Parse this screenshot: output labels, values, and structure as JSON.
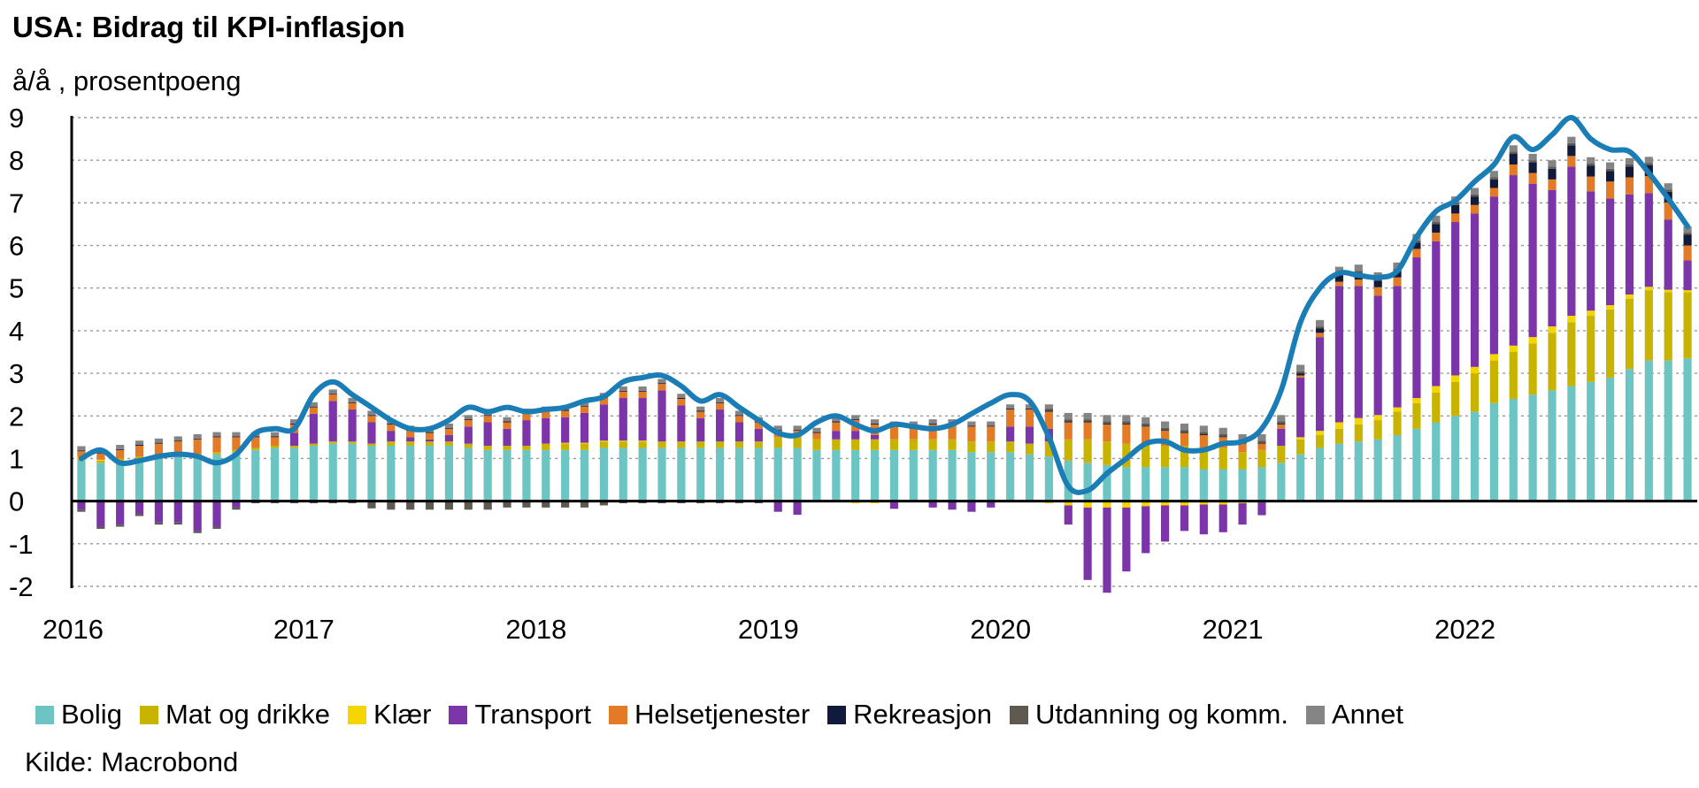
{
  "title": "USA: Bidrag til KPI-inflasjon",
  "unit_label": "å/å , prosentpoeng",
  "source": "Kilde: Macrobond",
  "chart_data": {
    "type": "bar",
    "stacked": true,
    "overlay_series_type": "line",
    "title": "USA: Bidrag til KPI-inflasjon",
    "ylabel": "å/å , prosentpoeng",
    "ylim": [
      -2,
      9
    ],
    "yticks": [
      -2,
      -1,
      0,
      1,
      2,
      3,
      4,
      5,
      6,
      7,
      8,
      9
    ],
    "xticks": [
      "2016",
      "2017",
      "2018",
      "2019",
      "2020",
      "2021",
      "2022"
    ],
    "grid": "horizontal dotted",
    "legend_position": "bottom",
    "categories": [
      "2016-01",
      "2016-02",
      "2016-03",
      "2016-04",
      "2016-05",
      "2016-06",
      "2016-07",
      "2016-08",
      "2016-09",
      "2016-10",
      "2016-11",
      "2016-12",
      "2017-01",
      "2017-02",
      "2017-03",
      "2017-04",
      "2017-05",
      "2017-06",
      "2017-07",
      "2017-08",
      "2017-09",
      "2017-10",
      "2017-11",
      "2017-12",
      "2018-01",
      "2018-02",
      "2018-03",
      "2018-04",
      "2018-05",
      "2018-06",
      "2018-07",
      "2018-08",
      "2018-09",
      "2018-10",
      "2018-11",
      "2018-12",
      "2019-01",
      "2019-02",
      "2019-03",
      "2019-04",
      "2019-05",
      "2019-06",
      "2019-07",
      "2019-08",
      "2019-09",
      "2019-10",
      "2019-11",
      "2019-12",
      "2020-01",
      "2020-02",
      "2020-03",
      "2020-04",
      "2020-05",
      "2020-06",
      "2020-07",
      "2020-08",
      "2020-09",
      "2020-10",
      "2020-11",
      "2020-12",
      "2021-01",
      "2021-02",
      "2021-03",
      "2021-04",
      "2021-05",
      "2021-06",
      "2021-07",
      "2021-08",
      "2021-09",
      "2021-10",
      "2021-11",
      "2021-12",
      "2022-01",
      "2022-02",
      "2022-03",
      "2022-04",
      "2022-05",
      "2022-06",
      "2022-07",
      "2022-08",
      "2022-09",
      "2022-10",
      "2022-11",
      "2022-12"
    ],
    "series": [
      {
        "name": "Bolig",
        "color": "#6cc5c3",
        "values": [
          0.95,
          0.9,
          0.95,
          1.0,
          1.0,
          1.05,
          1.05,
          1.1,
          1.15,
          1.2,
          1.25,
          1.25,
          1.3,
          1.35,
          1.35,
          1.3,
          1.3,
          1.3,
          1.3,
          1.3,
          1.25,
          1.2,
          1.2,
          1.2,
          1.2,
          1.2,
          1.2,
          1.25,
          1.25,
          1.25,
          1.25,
          1.25,
          1.25,
          1.25,
          1.25,
          1.25,
          1.25,
          1.25,
          1.2,
          1.2,
          1.2,
          1.2,
          1.2,
          1.2,
          1.2,
          1.2,
          1.15,
          1.15,
          1.15,
          1.1,
          1.05,
          0.95,
          0.9,
          0.85,
          0.8,
          0.8,
          0.8,
          0.8,
          0.75,
          0.75,
          0.75,
          0.8,
          0.9,
          1.1,
          1.25,
          1.35,
          1.4,
          1.45,
          1.55,
          1.7,
          1.85,
          2.0,
          2.1,
          2.3,
          2.4,
          2.5,
          2.6,
          2.7,
          2.8,
          2.9,
          3.1,
          3.3,
          3.3,
          3.35
        ]
      },
      {
        "name": "Mat og drikke",
        "color": "#c7b300",
        "values": [
          0.05,
          0.05,
          0.05,
          0.05,
          0.05,
          0.05,
          0.05,
          0.05,
          0.05,
          0.05,
          0.05,
          0.05,
          0.05,
          0.05,
          0.05,
          0.05,
          0.1,
          0.1,
          0.1,
          0.1,
          0.1,
          0.1,
          0.1,
          0.1,
          0.15,
          0.15,
          0.15,
          0.15,
          0.15,
          0.15,
          0.15,
          0.15,
          0.15,
          0.15,
          0.15,
          0.15,
          0.25,
          0.25,
          0.25,
          0.25,
          0.25,
          0.25,
          0.25,
          0.25,
          0.25,
          0.25,
          0.25,
          0.25,
          0.25,
          0.25,
          0.35,
          0.5,
          0.55,
          0.55,
          0.55,
          0.55,
          0.5,
          0.5,
          0.5,
          0.5,
          0.4,
          0.4,
          0.4,
          0.35,
          0.3,
          0.35,
          0.4,
          0.45,
          0.55,
          0.6,
          0.7,
          0.8,
          0.9,
          1.0,
          1.1,
          1.2,
          1.35,
          1.5,
          1.55,
          1.6,
          1.65,
          1.65,
          1.6,
          1.55
        ]
      },
      {
        "name": "Klær",
        "color": "#f5d500",
        "values": [
          0.02,
          0.02,
          0.0,
          0.0,
          0.0,
          0.0,
          0.0,
          0.0,
          0.0,
          0.0,
          0.0,
          0.0,
          0.0,
          0.0,
          0.0,
          -0.02,
          0.0,
          0.0,
          0.0,
          0.0,
          0.0,
          0.0,
          0.0,
          0.0,
          0.0,
          0.02,
          0.02,
          0.02,
          0.02,
          0.02,
          0.0,
          0.0,
          0.0,
          0.0,
          0.0,
          0.0,
          0.0,
          -0.02,
          -0.02,
          -0.03,
          -0.05,
          -0.05,
          -0.03,
          0.0,
          0.0,
          0.0,
          0.0,
          0.0,
          0.0,
          -0.03,
          -0.05,
          -0.1,
          -0.15,
          -0.15,
          -0.15,
          -0.12,
          -0.1,
          -0.1,
          -0.08,
          -0.08,
          -0.05,
          -0.03,
          0.0,
          0.05,
          0.1,
          0.15,
          0.15,
          0.12,
          0.1,
          0.12,
          0.15,
          0.15,
          0.15,
          0.15,
          0.15,
          0.15,
          0.15,
          0.15,
          0.12,
          0.1,
          0.1,
          0.08,
          0.06,
          0.05
        ]
      },
      {
        "name": "Transport",
        "color": "#7b35a8",
        "values": [
          -0.2,
          -0.6,
          -0.55,
          -0.3,
          -0.5,
          -0.5,
          -0.7,
          -0.6,
          -0.15,
          0.0,
          0.0,
          0.3,
          0.7,
          0.95,
          0.75,
          0.5,
          0.25,
          0.1,
          0.05,
          0.15,
          0.4,
          0.55,
          0.4,
          0.6,
          0.6,
          0.6,
          0.7,
          0.85,
          1.0,
          1.0,
          1.2,
          0.85,
          0.55,
          0.75,
          0.45,
          0.3,
          -0.25,
          -0.3,
          0.0,
          0.2,
          0.2,
          0.1,
          -0.15,
          0.0,
          -0.15,
          -0.2,
          -0.25,
          -0.15,
          0.35,
          0.4,
          0.3,
          -0.45,
          -1.7,
          -2.0,
          -1.5,
          -1.1,
          -0.85,
          -0.6,
          -0.7,
          -0.65,
          -0.5,
          -0.3,
          0.4,
          1.4,
          2.2,
          3.2,
          3.1,
          2.8,
          2.85,
          3.3,
          3.4,
          3.6,
          3.6,
          3.7,
          4.0,
          3.6,
          3.2,
          3.5,
          2.8,
          2.5,
          2.35,
          2.2,
          1.65,
          0.7
        ]
      },
      {
        "name": "Helsetjenester",
        "color": "#e37b26",
        "values": [
          0.15,
          0.15,
          0.2,
          0.25,
          0.3,
          0.3,
          0.35,
          0.35,
          0.3,
          0.25,
          0.2,
          0.2,
          0.15,
          0.15,
          0.15,
          0.15,
          0.15,
          0.15,
          0.15,
          0.15,
          0.15,
          0.15,
          0.15,
          0.15,
          0.15,
          0.15,
          0.15,
          0.15,
          0.15,
          0.15,
          0.15,
          0.15,
          0.15,
          0.15,
          0.15,
          0.15,
          0.15,
          0.15,
          0.15,
          0.2,
          0.25,
          0.25,
          0.3,
          0.3,
          0.35,
          0.35,
          0.35,
          0.35,
          0.4,
          0.4,
          0.4,
          0.4,
          0.4,
          0.4,
          0.45,
          0.4,
          0.35,
          0.3,
          0.3,
          0.25,
          0.2,
          0.15,
          0.1,
          0.05,
          0.1,
          0.1,
          0.15,
          0.2,
          0.2,
          0.2,
          0.2,
          0.2,
          0.2,
          0.2,
          0.25,
          0.25,
          0.25,
          0.25,
          0.35,
          0.4,
          0.4,
          0.4,
          0.4,
          0.35
        ]
      },
      {
        "name": "Rekreasjon",
        "color": "#111a3b",
        "values": [
          0.02,
          0.02,
          0.02,
          0.02,
          0.02,
          0.02,
          0.02,
          0.02,
          0.02,
          0.02,
          0.02,
          0.02,
          0.02,
          0.02,
          0.02,
          0.02,
          0.02,
          0.02,
          0.02,
          0.02,
          0.02,
          0.02,
          0.02,
          0.02,
          0.02,
          0.02,
          0.02,
          0.02,
          0.02,
          0.02,
          0.02,
          0.02,
          0.02,
          0.02,
          0.02,
          0.02,
          0.02,
          0.02,
          0.02,
          0.02,
          0.02,
          0.02,
          0.02,
          0.02,
          0.02,
          0.02,
          0.02,
          0.02,
          0.02,
          0.02,
          0.02,
          0.02,
          0.02,
          0.02,
          0.02,
          0.02,
          0.02,
          0.02,
          0.02,
          0.02,
          0.02,
          0.02,
          0.02,
          0.05,
          0.1,
          0.15,
          0.15,
          0.15,
          0.15,
          0.15,
          0.2,
          0.2,
          0.2,
          0.2,
          0.25,
          0.25,
          0.25,
          0.25,
          0.25,
          0.25,
          0.25,
          0.25,
          0.25,
          0.25
        ]
      },
      {
        "name": "Utdanning og komm.",
        "color": "#5e5a52",
        "values": [
          -0.05,
          -0.05,
          -0.05,
          -0.05,
          -0.05,
          -0.05,
          -0.05,
          -0.05,
          -0.05,
          -0.05,
          -0.05,
          -0.05,
          -0.05,
          -0.05,
          -0.05,
          -0.15,
          -0.2,
          -0.2,
          -0.2,
          -0.2,
          -0.2,
          -0.2,
          -0.15,
          -0.15,
          -0.15,
          -0.15,
          -0.15,
          -0.1,
          -0.05,
          -0.05,
          -0.05,
          -0.05,
          -0.05,
          -0.05,
          -0.05,
          -0.05,
          0.0,
          0.0,
          0.0,
          0.0,
          0.0,
          0.0,
          0.0,
          0.0,
          0.0,
          0.0,
          0.0,
          0.0,
          0.0,
          0.0,
          0.05,
          0.05,
          0.05,
          0.05,
          0.05,
          0.05,
          0.05,
          0.05,
          0.05,
          0.05,
          0.05,
          0.05,
          0.05,
          0.05,
          0.05,
          0.05,
          0.05,
          0.05,
          0.05,
          0.05,
          0.05,
          0.05,
          0.05,
          0.05,
          0.05,
          0.05,
          0.05,
          0.05,
          0.05,
          0.05,
          0.05,
          0.05,
          0.05,
          0.05
        ]
      },
      {
        "name": "Annet",
        "color": "#848484",
        "values": [
          0.1,
          0.1,
          0.1,
          0.1,
          0.1,
          0.1,
          0.1,
          0.1,
          0.1,
          0.1,
          0.1,
          0.1,
          0.1,
          0.1,
          0.1,
          0.1,
          0.1,
          0.1,
          0.1,
          0.1,
          0.1,
          0.1,
          0.1,
          0.1,
          0.1,
          0.1,
          0.1,
          0.1,
          0.1,
          0.1,
          0.1,
          0.1,
          0.1,
          0.1,
          0.1,
          0.1,
          0.1,
          0.1,
          0.1,
          0.1,
          0.1,
          0.1,
          0.1,
          0.1,
          0.1,
          0.1,
          0.1,
          0.1,
          0.1,
          0.1,
          0.1,
          0.15,
          0.15,
          0.15,
          0.15,
          0.15,
          0.15,
          0.15,
          0.15,
          0.15,
          0.15,
          0.15,
          0.15,
          0.15,
          0.15,
          0.15,
          0.15,
          0.15,
          0.15,
          0.15,
          0.15,
          0.15,
          0.15,
          0.15,
          0.15,
          0.15,
          0.15,
          0.15,
          0.15,
          0.15,
          0.15,
          0.15,
          0.15,
          0.15
        ]
      }
    ],
    "total_line": {
      "color": "#1a7db5",
      "values": [
        1.0,
        1.2,
        0.9,
        0.95,
        1.05,
        1.1,
        1.05,
        0.9,
        1.1,
        1.6,
        1.7,
        1.7,
        2.5,
        2.8,
        2.5,
        2.2,
        1.9,
        1.7,
        1.7,
        1.9,
        2.2,
        2.1,
        2.2,
        2.1,
        2.15,
        2.2,
        2.35,
        2.45,
        2.8,
        2.9,
        2.95,
        2.7,
        2.35,
        2.5,
        2.2,
        1.9,
        1.6,
        1.55,
        1.85,
        2.0,
        1.8,
        1.65,
        1.8,
        1.75,
        1.7,
        1.8,
        2.05,
        2.3,
        2.5,
        2.35,
        1.5,
        0.35,
        0.25,
        0.65,
        1.0,
        1.35,
        1.4,
        1.2,
        1.2,
        1.35,
        1.4,
        1.7,
        2.6,
        4.2,
        5.0,
        5.35,
        5.3,
        5.25,
        5.4,
        6.2,
        6.8,
        7.05,
        7.5,
        7.9,
        8.55,
        8.25,
        8.6,
        9.0,
        8.5,
        8.25,
        8.2,
        7.7,
        7.1,
        6.45
      ]
    }
  },
  "legend": {
    "items": [
      {
        "label": "Bolig",
        "color": "#6cc5c3"
      },
      {
        "label": "Mat og drikke",
        "color": "#c7b300"
      },
      {
        "label": "Klær",
        "color": "#f5d500"
      },
      {
        "label": "Transport",
        "color": "#7b35a8"
      },
      {
        "label": "Helsetjenester",
        "color": "#e37b26"
      },
      {
        "label": "Rekreasjon",
        "color": "#111a3b"
      },
      {
        "label": "Utdanning og komm.",
        "color": "#5e5a52"
      },
      {
        "label": "Annet",
        "color": "#848484"
      }
    ]
  }
}
